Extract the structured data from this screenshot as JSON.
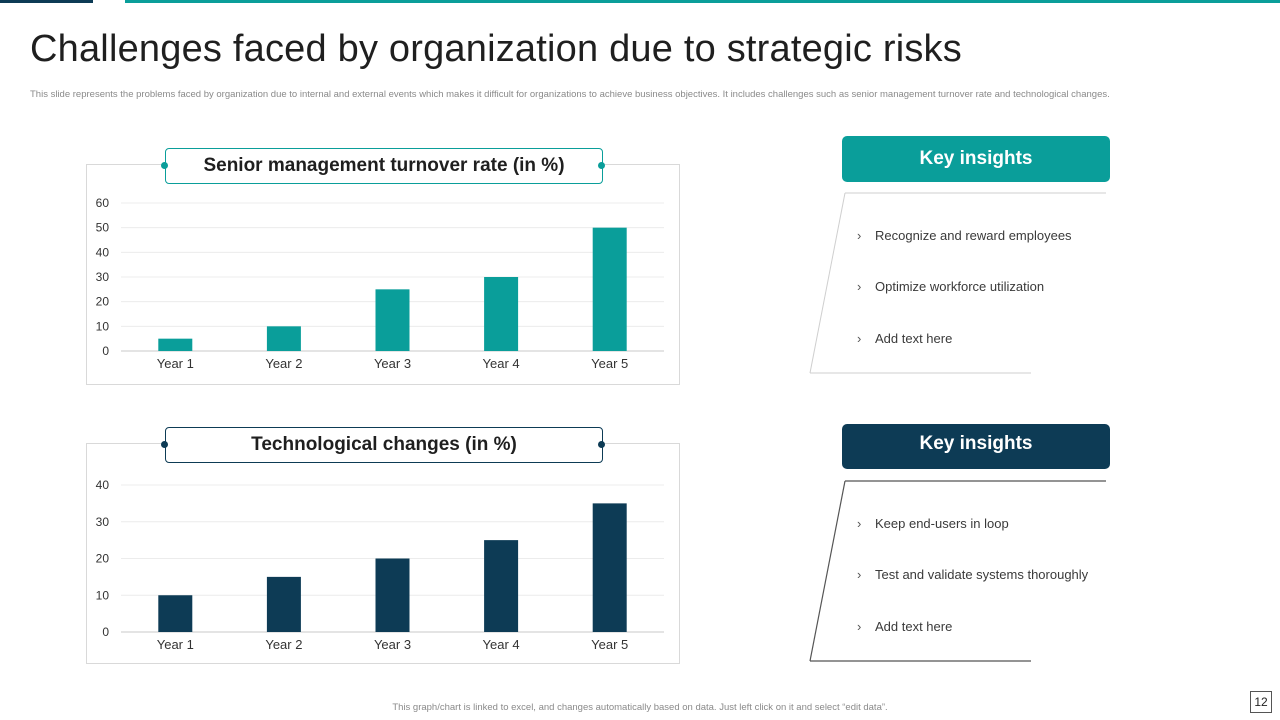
{
  "slide": {
    "title": "Challenges faced by organization due to strategic risks",
    "subtitle": "This slide represents the problems faced by organization due to internal and external events which makes it difficult for organizations to achieve business objectives. It includes challenges such as senior management turnover rate and technological changes.",
    "footer": "This graph/chart is linked to excel, and changes automatically based on data. Just left click on it and select “edit data”.",
    "page_number": "12",
    "colors": {
      "teal": "#0a9e9a",
      "navy": "#0d3b55"
    }
  },
  "insights": [
    {
      "header": "Key insights",
      "items": [
        "Recognize and reward employees",
        "Optimize workforce utilization",
        "Add text here"
      ]
    },
    {
      "header": "Key insights",
      "items": [
        "Keep end-users in loop",
        "Test and validate systems thoroughly",
        "Add text here"
      ]
    }
  ],
  "chart_data": [
    {
      "type": "bar",
      "title": "Senior management turnover rate (in %)",
      "categories": [
        "Year 1",
        "Year 2",
        "Year 3",
        "Year 4",
        "Year 5"
      ],
      "values": [
        5,
        10,
        25,
        30,
        50
      ],
      "ylim": [
        0,
        60
      ],
      "yticks": [
        0,
        10,
        20,
        30,
        40,
        50,
        60
      ],
      "grid": true,
      "color": "#0a9e9a"
    },
    {
      "type": "bar",
      "title": "Technological changes (in %)",
      "categories": [
        "Year 1",
        "Year 2",
        "Year 3",
        "Year 4",
        "Year 5"
      ],
      "values": [
        10,
        15,
        20,
        25,
        35
      ],
      "ylim": [
        0,
        40
      ],
      "yticks": [
        0,
        10,
        20,
        30,
        40
      ],
      "grid": true,
      "color": "#0d3b55"
    }
  ]
}
